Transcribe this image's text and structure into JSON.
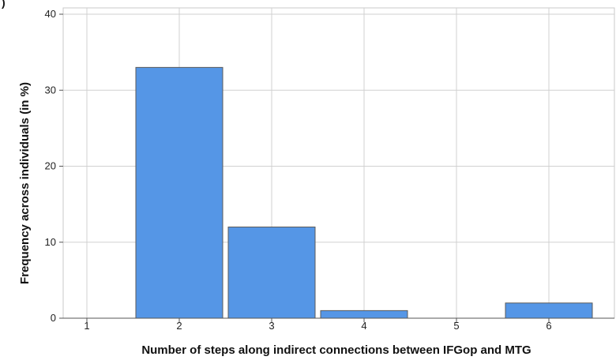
{
  "panel_label": ")",
  "chart_data": {
    "type": "bar",
    "categories": [
      "1",
      "2",
      "3",
      "4",
      "5",
      "6"
    ],
    "values": [
      0,
      33,
      12,
      1,
      0,
      2
    ],
    "xlabel": "Number of steps along indirect connections between IFGop and MTG",
    "ylabel": "Frequency across individuals (in %)",
    "ylim": [
      0,
      40
    ],
    "yticks": [
      0,
      10,
      20,
      30,
      40
    ],
    "grid": true,
    "bar_color": "#5596e6",
    "bar_edge_color": "#5b5b5b"
  }
}
